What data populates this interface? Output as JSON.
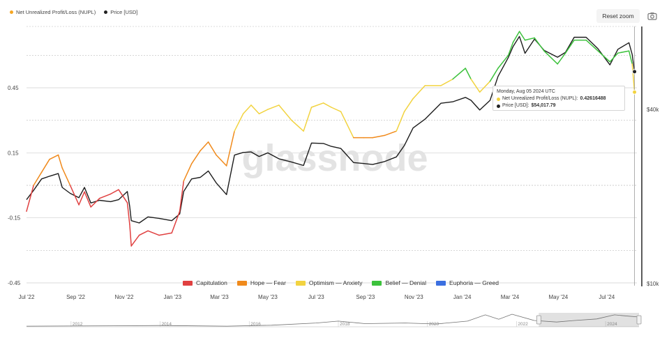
{
  "legend": {
    "series": [
      {
        "label": "Net Unrealized Profit/Loss (NUPL)",
        "color": "#f5a623",
        "icon": "orange-dot-icon"
      },
      {
        "label": "Price [USD]",
        "color": "#222222",
        "icon": "black-dot-icon"
      }
    ]
  },
  "toolbar": {
    "reset_zoom_label": "Reset zoom",
    "camera_icon": "camera-icon"
  },
  "watermark": "glassnode",
  "tooltip": {
    "date": "Monday, Aug 05 2024 UTC",
    "nupl_label": "Net Unrealized Profit/Loss (NUPL):",
    "nupl_value": "0.42616488",
    "price_label": "Price [USD]:",
    "price_value": "$54,017.79"
  },
  "zones": [
    {
      "label": "Capitulation",
      "color": "#e04040"
    },
    {
      "label": "Hope — Fear",
      "color": "#f08a1c"
    },
    {
      "label": "Optimism — Anxiety",
      "color": "#f2d340"
    },
    {
      "label": "Belief — Denial",
      "color": "#3cc23c"
    },
    {
      "label": "Euphoria — Greed",
      "color": "#3b6fe0"
    }
  ],
  "chart_data": {
    "type": "line",
    "x_ticks": [
      "Jul '22",
      "Sep '22",
      "Nov '22",
      "Jan '23",
      "Mar '23",
      "May '23",
      "Jul '23",
      "Sep '23",
      "Nov '23",
      "Jan '24",
      "Mar '24",
      "May '24",
      "Jul '24"
    ],
    "y_left_ticks": [
      "0.45",
      "0.15",
      "-0.15",
      "-0.45"
    ],
    "y_left_range": [
      -0.45,
      0.75
    ],
    "y_right_ticks": [
      "$40k",
      "$10k"
    ],
    "y_right_scale": "log",
    "navigator_years": [
      "2012",
      "2014",
      "2016",
      "2018",
      "2020",
      "2022",
      "2024"
    ],
    "zone_bands": [
      {
        "name": "Capitulation",
        "max": 0.0
      },
      {
        "name": "Hope — Fear",
        "max": 0.25
      },
      {
        "name": "Optimism — Anxiety",
        "max": 0.5
      },
      {
        "name": "Belief — Denial",
        "max": 0.75
      },
      {
        "name": "Euphoria — Greed",
        "max": 1.0
      }
    ],
    "series": [
      {
        "name": "Net Unrealized Profit/Loss (NUPL)",
        "x": [
          "2022-07-01",
          "2022-07-10",
          "2022-07-20",
          "2022-07-30",
          "2022-08-10",
          "2022-08-15",
          "2022-08-25",
          "2022-09-05",
          "2022-09-12",
          "2022-09-20",
          "2022-10-01",
          "2022-10-15",
          "2022-10-25",
          "2022-11-05",
          "2022-11-08",
          "2022-11-10",
          "2022-11-20",
          "2022-12-01",
          "2022-12-15",
          "2022-12-31",
          "2023-01-10",
          "2023-01-15",
          "2023-01-25",
          "2023-02-05",
          "2023-02-15",
          "2023-02-25",
          "2023-03-10",
          "2023-03-20",
          "2023-03-31",
          "2023-04-10",
          "2023-04-20",
          "2023-05-01",
          "2023-05-15",
          "2023-05-31",
          "2023-06-15",
          "2023-06-25",
          "2023-07-10",
          "2023-07-20",
          "2023-08-01",
          "2023-08-17",
          "2023-08-30",
          "2023-09-10",
          "2023-09-25",
          "2023-10-10",
          "2023-10-20",
          "2023-10-31",
          "2023-11-15",
          "2023-12-05",
          "2023-12-20",
          "2024-01-05",
          "2024-01-12",
          "2024-01-23",
          "2024-02-05",
          "2024-02-15",
          "2024-02-28",
          "2024-03-05",
          "2024-03-13",
          "2024-03-20",
          "2024-04-01",
          "2024-04-13",
          "2024-04-30",
          "2024-05-10",
          "2024-05-21",
          "2024-06-05",
          "2024-06-20",
          "2024-07-05",
          "2024-07-15",
          "2024-07-29",
          "2024-08-02",
          "2024-08-05"
        ],
        "values": [
          -0.12,
          0.0,
          0.06,
          0.12,
          0.14,
          0.08,
          0.0,
          -0.09,
          -0.03,
          -0.1,
          -0.06,
          -0.04,
          -0.02,
          -0.08,
          -0.18,
          -0.28,
          -0.23,
          -0.21,
          -0.23,
          -0.22,
          -0.12,
          0.02,
          0.1,
          0.16,
          0.2,
          0.14,
          0.09,
          0.25,
          0.33,
          0.37,
          0.33,
          0.35,
          0.37,
          0.3,
          0.25,
          0.36,
          0.38,
          0.36,
          0.34,
          0.22,
          0.22,
          0.22,
          0.23,
          0.25,
          0.34,
          0.4,
          0.46,
          0.46,
          0.49,
          0.54,
          0.49,
          0.43,
          0.48,
          0.54,
          0.6,
          0.66,
          0.71,
          0.67,
          0.68,
          0.62,
          0.56,
          0.61,
          0.67,
          0.67,
          0.62,
          0.57,
          0.61,
          0.62,
          0.56,
          0.43
        ]
      },
      {
        "name": "Price [USD]",
        "x": [
          "2022-07-01",
          "2022-07-10",
          "2022-07-20",
          "2022-07-30",
          "2022-08-10",
          "2022-08-15",
          "2022-08-25",
          "2022-09-05",
          "2022-09-12",
          "2022-09-20",
          "2022-10-01",
          "2022-10-15",
          "2022-10-25",
          "2022-11-05",
          "2022-11-08",
          "2022-11-10",
          "2022-11-20",
          "2022-12-01",
          "2022-12-15",
          "2022-12-31",
          "2023-01-10",
          "2023-01-15",
          "2023-01-25",
          "2023-02-05",
          "2023-02-15",
          "2023-02-25",
          "2023-03-10",
          "2023-03-20",
          "2023-03-31",
          "2023-04-10",
          "2023-04-20",
          "2023-05-01",
          "2023-05-15",
          "2023-05-31",
          "2023-06-15",
          "2023-06-25",
          "2023-07-10",
          "2023-07-20",
          "2023-08-01",
          "2023-08-17",
          "2023-08-30",
          "2023-09-10",
          "2023-09-25",
          "2023-10-10",
          "2023-10-20",
          "2023-10-31",
          "2023-11-15",
          "2023-12-05",
          "2023-12-20",
          "2024-01-05",
          "2024-01-12",
          "2024-01-23",
          "2024-02-05",
          "2024-02-15",
          "2024-02-28",
          "2024-03-05",
          "2024-03-13",
          "2024-03-20",
          "2024-04-01",
          "2024-04-13",
          "2024-04-30",
          "2024-05-10",
          "2024-05-21",
          "2024-06-05",
          "2024-06-20",
          "2024-07-05",
          "2024-07-15",
          "2024-07-29",
          "2024-08-02",
          "2024-08-05"
        ],
        "values": [
          19500,
          21000,
          23000,
          23500,
          24000,
          21500,
          20500,
          19800,
          21500,
          19000,
          19400,
          19200,
          19500,
          20800,
          18500,
          16500,
          16200,
          17000,
          16800,
          16500,
          17400,
          20800,
          23000,
          23300,
          24500,
          22300,
          20300,
          27800,
          28400,
          28500,
          27500,
          28300,
          27000,
          26300,
          25600,
          30600,
          30500,
          29800,
          29300,
          26200,
          26000,
          25800,
          26400,
          27400,
          30000,
          34500,
          37000,
          42000,
          42500,
          44000,
          43000,
          39800,
          43000,
          52000,
          60500,
          66000,
          71500,
          62500,
          70000,
          64000,
          60600,
          63000,
          71000,
          71000,
          64800,
          57000,
          64500,
          68000,
          62000,
          54017
        ]
      }
    ]
  }
}
